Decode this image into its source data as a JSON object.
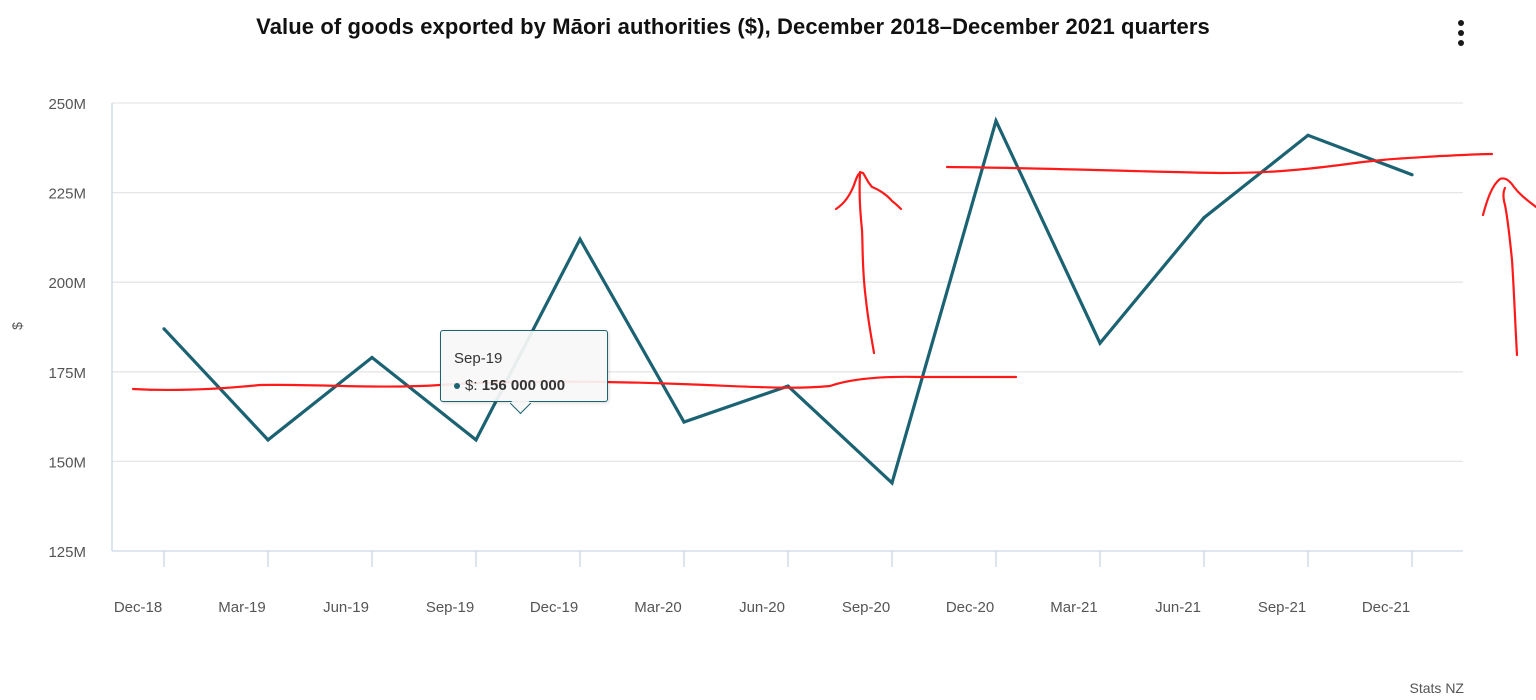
{
  "header": {
    "title": "Value of goods exported by Māori authorities ($), December 2018–December 2021 quarters",
    "menu_icon": "kebab-menu-icon"
  },
  "credit": "Stats NZ",
  "tooltip": {
    "category": "Sep-19",
    "series_label": "$: ",
    "value_label": "156 000 000"
  },
  "colors": {
    "series": "#1b6272",
    "annotation": "#ff1a1a",
    "grid": "#e6e6e6"
  },
  "chart_data": {
    "type": "line",
    "title": "Value of goods exported by Māori authorities ($), December 2018–December 2021 quarters",
    "ylabel": "$",
    "xlabel": "",
    "ylim": [
      125000000,
      250000000
    ],
    "yticks": [
      125000000,
      150000000,
      175000000,
      200000000,
      225000000,
      250000000
    ],
    "ytick_labels": [
      "125M",
      "150M",
      "175M",
      "200M",
      "225M",
      "250M"
    ],
    "grid": true,
    "legend": "none",
    "categories": [
      "Dec-18",
      "Mar-19",
      "Jun-19",
      "Sep-19",
      "Dec-19",
      "Mar-20",
      "Jun-20",
      "Sep-20",
      "Dec-20",
      "Mar-21",
      "Jun-21",
      "Sep-21",
      "Dec-21"
    ],
    "series": [
      {
        "values": [
          187000000,
          156000000,
          179000000,
          156000000,
          212000000,
          161000000,
          171000000,
          144000000,
          245000000,
          183000000,
          218000000,
          241000000,
          230000000
        ]
      }
    ]
  }
}
